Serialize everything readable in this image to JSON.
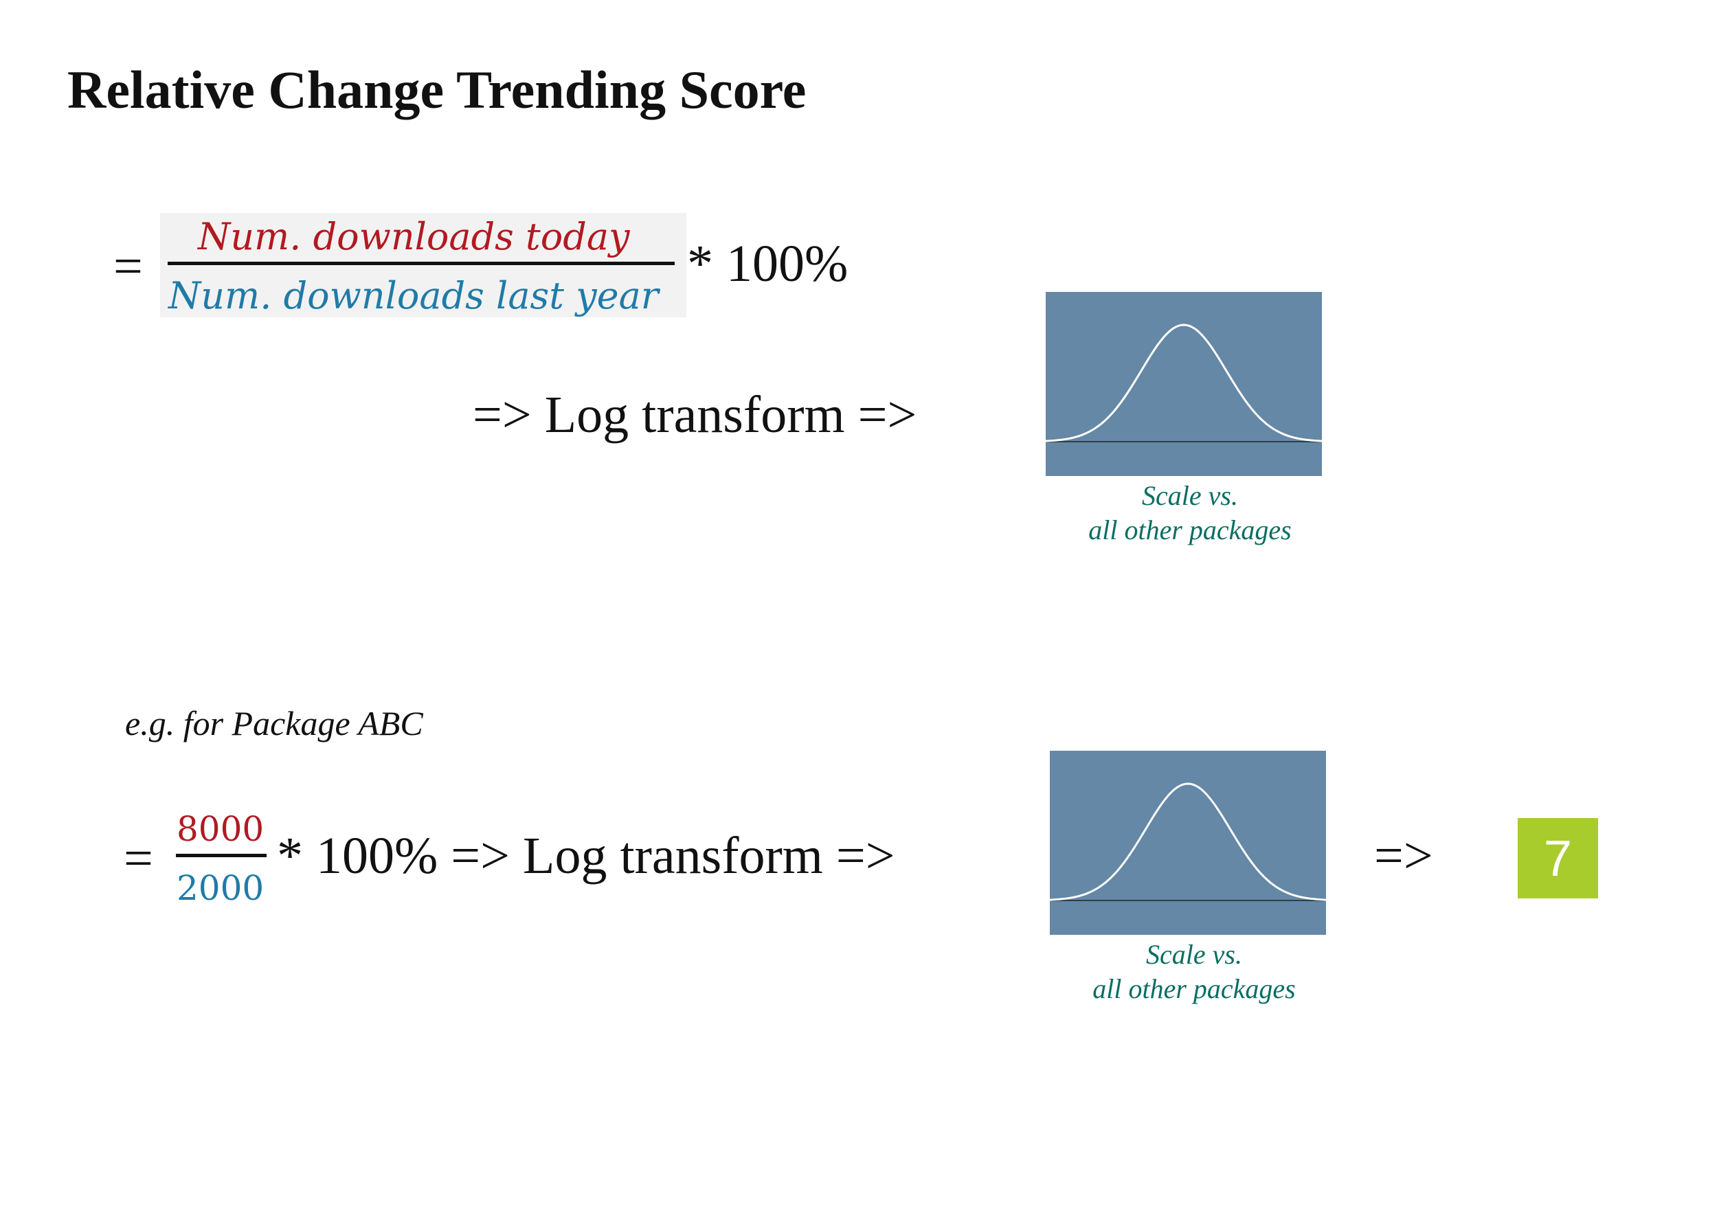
{
  "title": "Relative Change Trending Score",
  "colors": {
    "numerator": "#b11a21",
    "denominator": "#1f7ba8",
    "caption": "#0b6e62",
    "curve_bg": "#6488a6",
    "curve_line": "#ffffff",
    "result_bg": "#a8cc2c"
  },
  "formula": {
    "equals": "=",
    "numerator": "Num.  downloads today",
    "denominator": "Num.  downloads last year",
    "multiplier": "* 100%",
    "log_step": "=> Log transform =>",
    "distribution_icon": "bell-curve-icon",
    "caption_line1": "Scale vs.",
    "caption_line2": "all other packages"
  },
  "example": {
    "label": "e.g. for Package ABC",
    "equals": "=",
    "numerator": "8000",
    "denominator": "2000",
    "multiplier_and_log_step": "* 100% => Log transform =>",
    "distribution_icon": "bell-curve-icon",
    "caption_line1": "Scale vs.",
    "caption_line2": "all other packages",
    "final_arrow": "=>",
    "result": "7"
  }
}
